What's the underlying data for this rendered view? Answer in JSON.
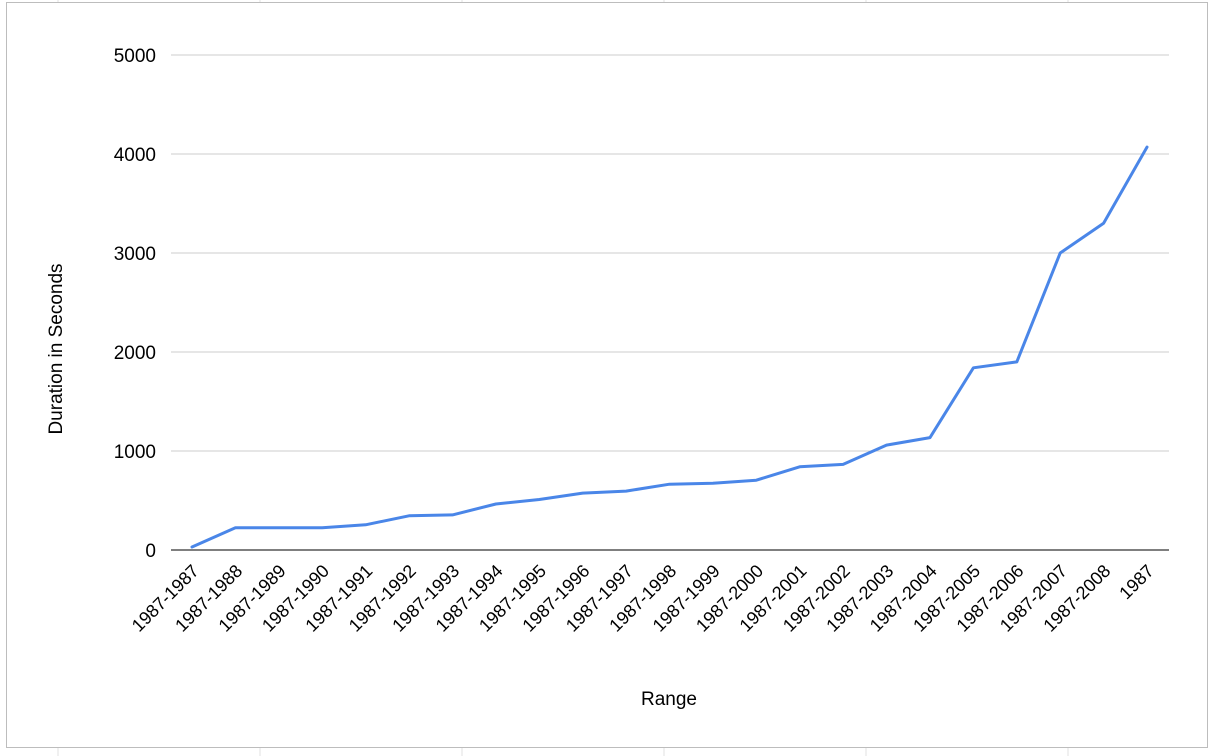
{
  "chart_data": {
    "type": "line",
    "xlabel": "Range",
    "ylabel": "Duration in Seconds",
    "ylim": [
      0,
      5000
    ],
    "yticks": [
      0,
      1000,
      2000,
      3000,
      4000,
      5000
    ],
    "grid": true,
    "legend": "none",
    "categories": [
      "1987-1987",
      "1987-1988",
      "1987-1989",
      "1987-1990",
      "1987-1991",
      "1987-1992",
      "1987-1993",
      "1987-1994",
      "1987-1995",
      "1987-1996",
      "1987-1997",
      "1987-1998",
      "1987-1999",
      "1987-2000",
      "1987-2001",
      "1987-2002",
      "1987-2003",
      "1987-2004",
      "1987-2005",
      "1987-2006",
      "1987-2007",
      "1987-2008",
      "1987"
    ],
    "series": [
      {
        "color": "#4a86e8",
        "values": [
          30,
          225,
          225,
          225,
          255,
          345,
          355,
          465,
          510,
          575,
          595,
          665,
          675,
          705,
          840,
          865,
          1060,
          1135,
          1840,
          1900,
          3000,
          3300,
          4070
        ]
      }
    ]
  }
}
